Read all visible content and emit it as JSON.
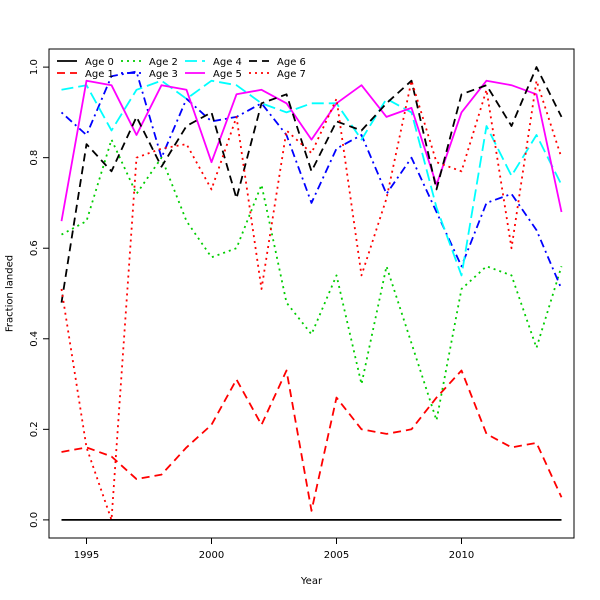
{
  "chart_data": {
    "type": "line",
    "title": "",
    "xlabel": "Year",
    "ylabel": "Fraction landed",
    "xlim": [
      1993.5,
      2014.5
    ],
    "ylim": [
      -0.04,
      1.04
    ],
    "xticks": [
      1995,
      2000,
      2005,
      2010
    ],
    "yticks": [
      0.0,
      0.2,
      0.4,
      0.6,
      0.8,
      1.0
    ],
    "legend_position": "top-left",
    "x": [
      1994,
      1995,
      1996,
      1997,
      1998,
      1999,
      2000,
      2001,
      2002,
      2003,
      2004,
      2005,
      2006,
      2007,
      2008,
      2009,
      2010,
      2011,
      2012,
      2013,
      2014
    ],
    "series": [
      {
        "name": "Age 0",
        "color": "#000000",
        "dash": "solid",
        "values": [
          0.0,
          0.0,
          0.0,
          0.0,
          0.0,
          0.0,
          0.0,
          0.0,
          0.0,
          0.0,
          0.0,
          0.0,
          0.0,
          0.0,
          0.0,
          0.0,
          0.0,
          0.0,
          0.0,
          0.0,
          0.0
        ]
      },
      {
        "name": "Age 1",
        "color": "#ff0000",
        "dash": "dashed",
        "values": [
          0.15,
          0.16,
          0.14,
          0.09,
          0.1,
          0.16,
          0.21,
          0.31,
          0.21,
          0.33,
          0.02,
          0.27,
          0.2,
          0.19,
          0.2,
          0.27,
          0.33,
          0.19,
          0.16,
          0.17,
          0.05
        ]
      },
      {
        "name": "Age 2",
        "color": "#00cd00",
        "dash": "dotted",
        "values": [
          0.63,
          0.66,
          0.84,
          0.72,
          0.8,
          0.66,
          0.58,
          0.6,
          0.74,
          0.48,
          0.41,
          0.54,
          0.3,
          0.56,
          0.39,
          0.22,
          0.51,
          0.56,
          0.54,
          0.38,
          0.56
        ]
      },
      {
        "name": "Age 3",
        "color": "#0000ff",
        "dash": "dotdash",
        "values": [
          0.9,
          0.85,
          0.98,
          0.99,
          0.8,
          0.93,
          0.88,
          0.89,
          0.92,
          0.85,
          0.7,
          0.82,
          0.85,
          0.72,
          0.8,
          0.68,
          0.56,
          0.7,
          0.72,
          0.64,
          0.51
        ]
      },
      {
        "name": "Age 4",
        "color": "#00ffff",
        "dash": "longdash",
        "values": [
          0.95,
          0.96,
          0.86,
          0.95,
          0.97,
          0.93,
          0.97,
          0.96,
          0.92,
          0.9,
          0.92,
          0.92,
          0.84,
          0.93,
          0.9,
          0.69,
          0.54,
          0.87,
          0.76,
          0.85,
          0.74
        ]
      },
      {
        "name": "Age 5",
        "color": "#ff00ff",
        "dash": "solid",
        "values": [
          0.66,
          0.97,
          0.96,
          0.85,
          0.96,
          0.95,
          0.79,
          0.94,
          0.95,
          0.92,
          0.84,
          0.92,
          0.96,
          0.89,
          0.91,
          0.74,
          0.9,
          0.97,
          0.96,
          0.94,
          0.68
        ]
      },
      {
        "name": "Age 6",
        "color": "#000000",
        "dash": "dashed",
        "values": [
          0.48,
          0.83,
          0.77,
          0.89,
          0.78,
          0.87,
          0.9,
          0.71,
          0.92,
          0.94,
          0.77,
          0.88,
          0.86,
          0.92,
          0.97,
          0.73,
          0.94,
          0.96,
          0.87,
          1.0,
          0.89
        ]
      },
      {
        "name": "Age 7",
        "color": "#ff0000",
        "dash": "dotted",
        "values": [
          0.51,
          0.16,
          0.0,
          0.8,
          0.82,
          0.83,
          0.73,
          0.89,
          0.51,
          0.86,
          0.81,
          0.93,
          0.54,
          0.71,
          0.97,
          0.79,
          0.77,
          0.95,
          0.6,
          0.97,
          0.8
        ]
      }
    ]
  }
}
